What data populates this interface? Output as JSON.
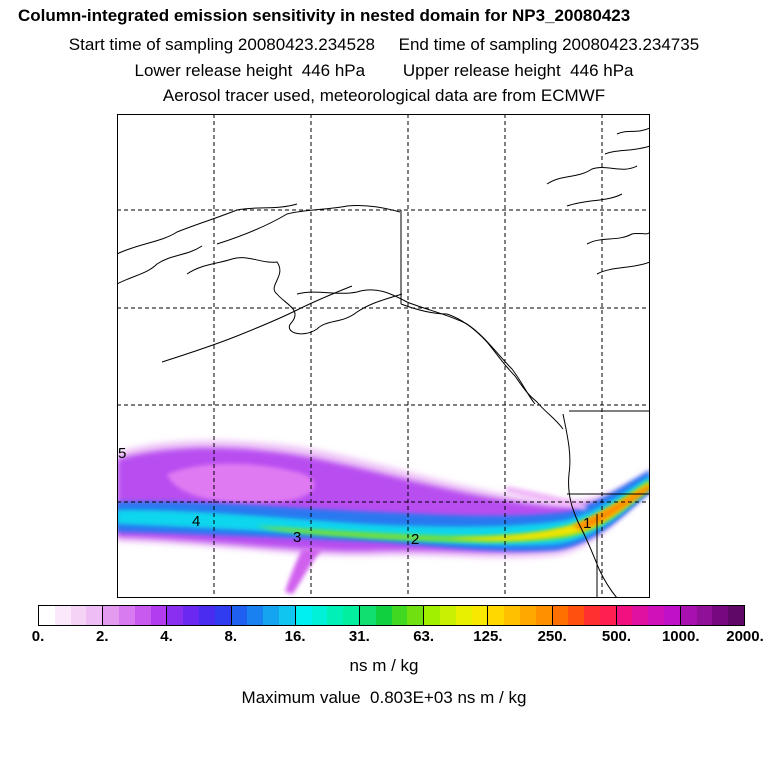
{
  "titles": {
    "line1": "Column-integrated emission sensitivity in nested domain for NP3_20080423",
    "line2": "Start time of sampling 20080423.234528     End time of sampling 20080423.234735",
    "line3": "Lower release height  446 hPa        Upper release height  446 hPa",
    "line4": "Aerosol tracer used, meteorological data are from ECMWF"
  },
  "map": {
    "plume_labels": [
      "5",
      "4",
      "3",
      "2",
      "1"
    ]
  },
  "colorbar": {
    "tick_labels": [
      "0.",
      "2.",
      "4.",
      "8.",
      "16.",
      "31.",
      "63.",
      "125.",
      "250.",
      "500.",
      "1000.",
      "2000."
    ],
    "segments": [
      [
        "#ffffff",
        "#fbe8fb",
        "#f5d3f7",
        "#efbdf5"
      ],
      [
        "#e39bf0",
        "#d97bf0",
        "#c85af0",
        "#b23cf0"
      ],
      [
        "#8a2ef0",
        "#6a28f0",
        "#4a2cf0",
        "#2f3cf0"
      ],
      [
        "#2060f0",
        "#1a82f0",
        "#14a4f0",
        "#10c6f0"
      ],
      [
        "#00f0f0",
        "#00f0d8",
        "#00f0b8",
        "#00f0a0"
      ],
      [
        "#10e070",
        "#10d040",
        "#40d820",
        "#70e010"
      ],
      [
        "#a0f000",
        "#c8f000",
        "#e8f000",
        "#f8e800"
      ],
      [
        "#ffd800",
        "#ffc000",
        "#ffa800",
        "#ff9000"
      ],
      [
        "#ff7000",
        "#ff5010",
        "#ff3030",
        "#ff2050"
      ],
      [
        "#f01080",
        "#e010a0",
        "#d010b8",
        "#c010c8"
      ],
      [
        "#a810b0",
        "#901098",
        "#780880",
        "#600868"
      ]
    ],
    "units": "ns m / kg"
  },
  "max_value_text": "Maximum value  0.803E+03 ns m / kg"
}
